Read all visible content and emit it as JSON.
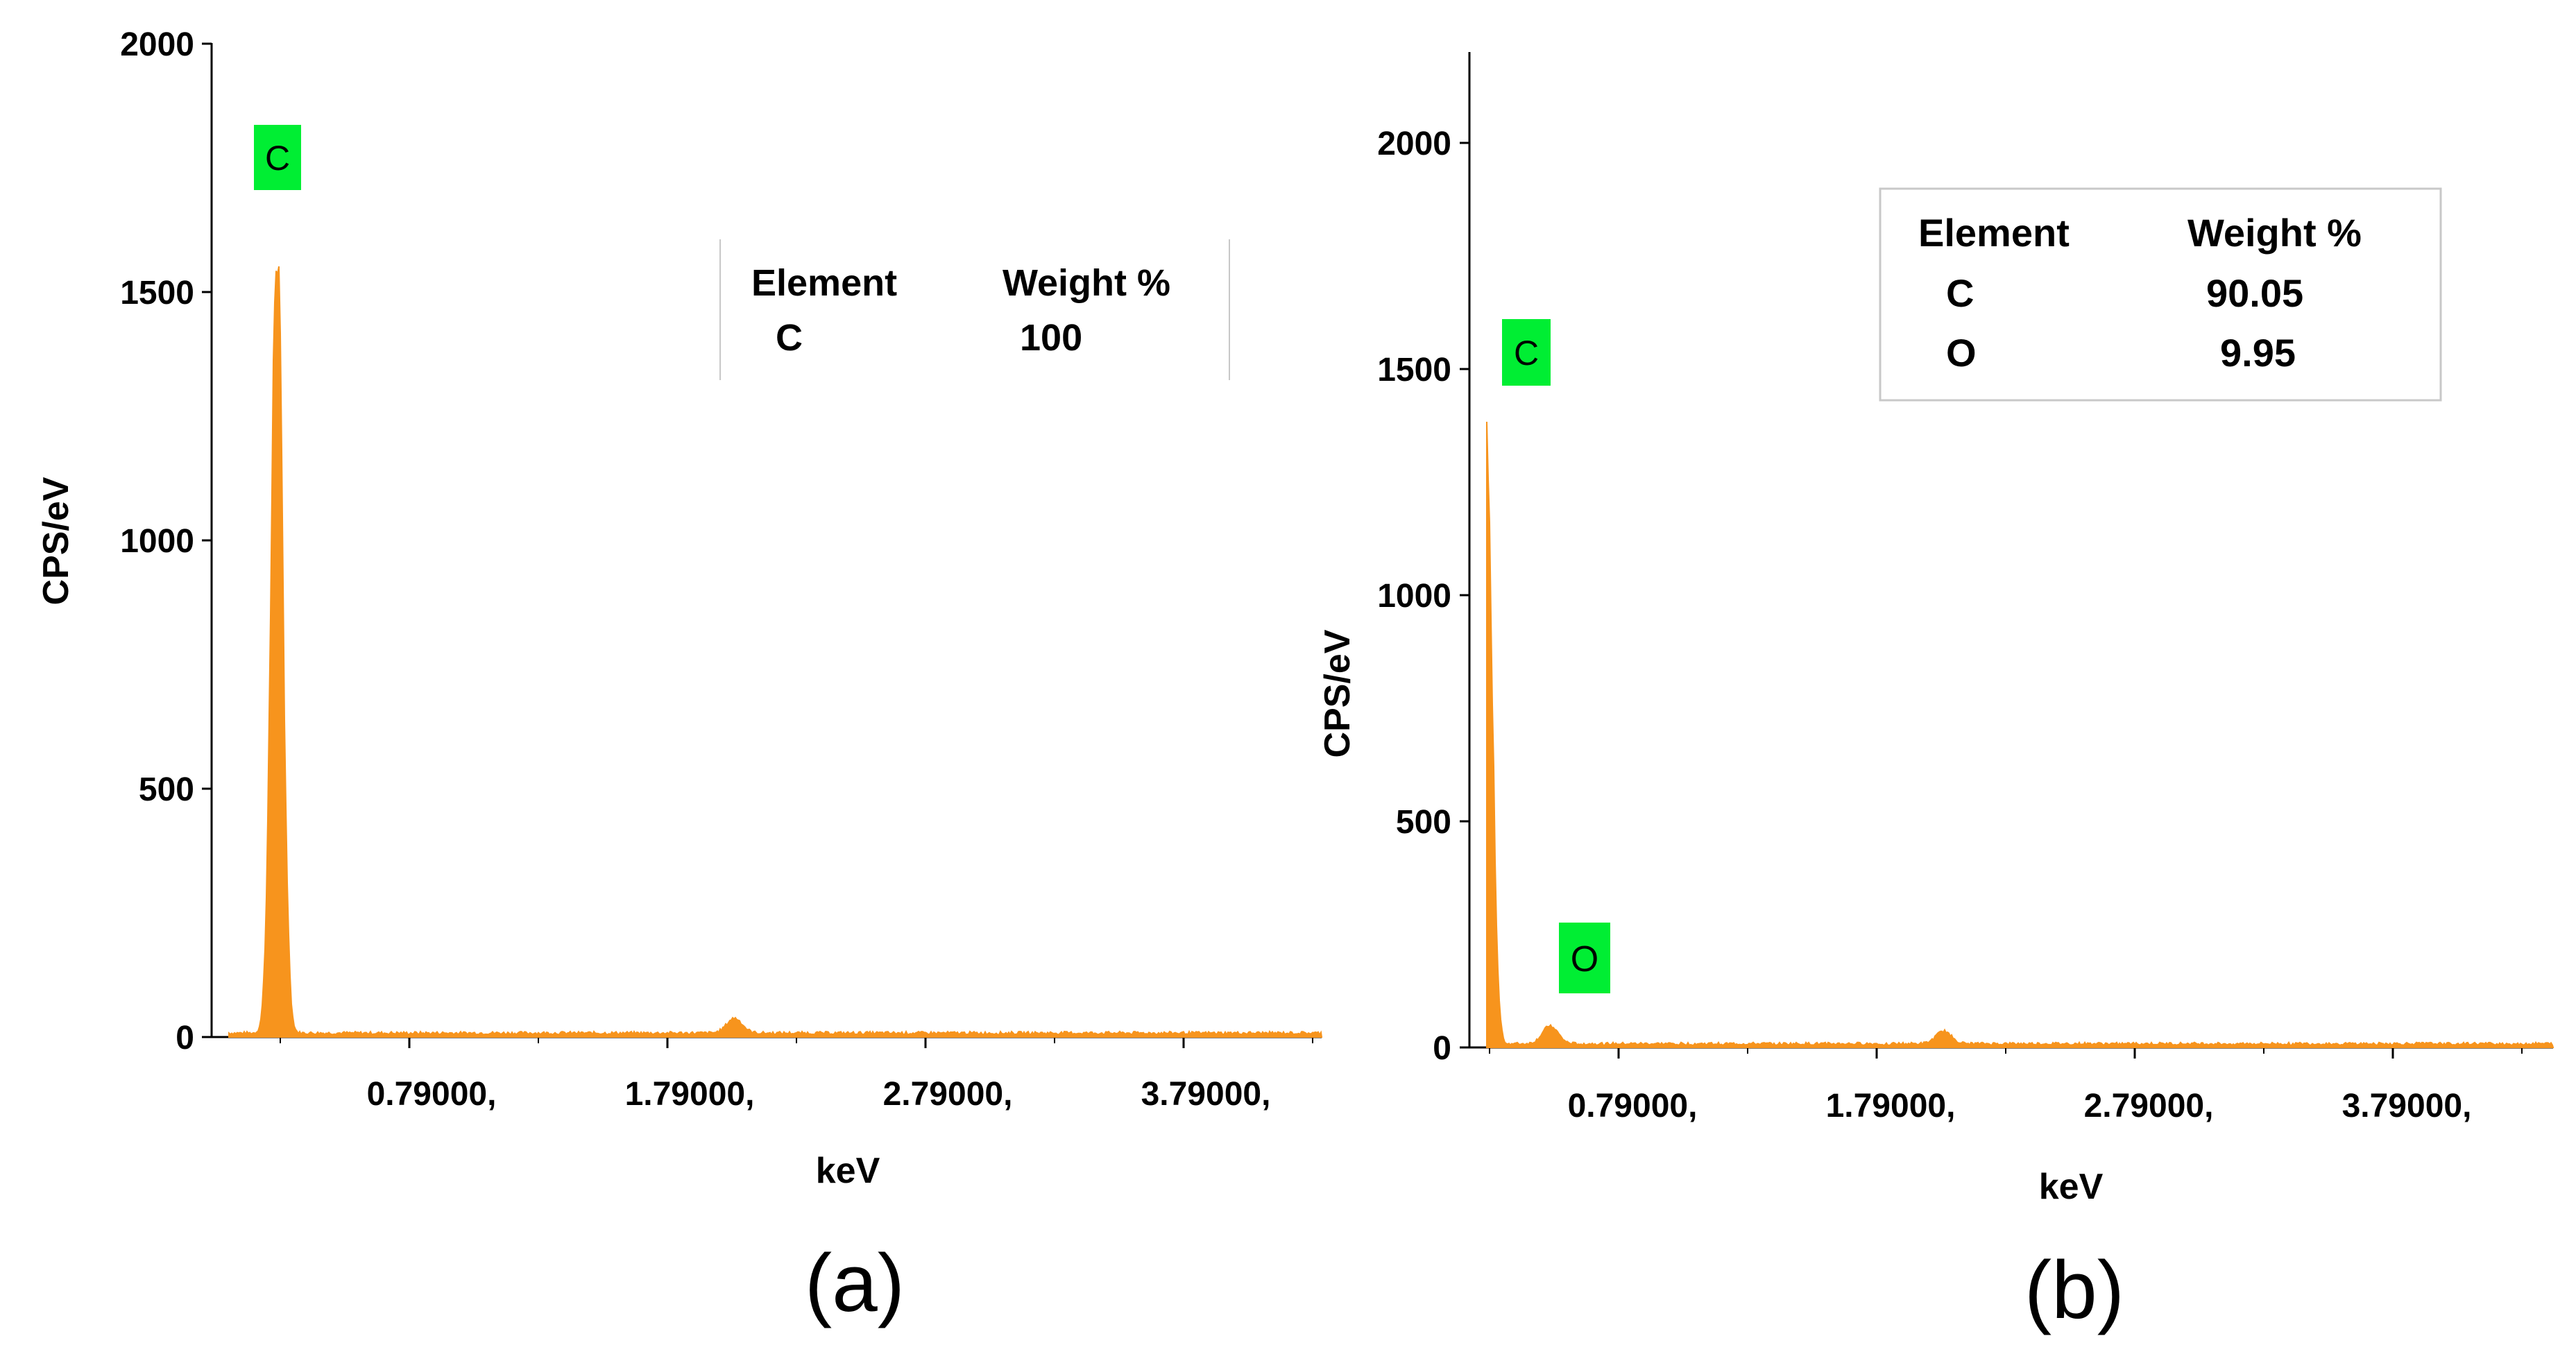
{
  "colors": {
    "spectrum": "#f7941d",
    "peak_label_bg": "#00ee33",
    "axis": "#000000",
    "table_border": "#c8c8c8"
  },
  "panels": [
    {
      "caption": "(a)",
      "xlabel": "keV",
      "ylabel": "CPS/eV",
      "y_ticks": [
        "0",
        "500",
        "1000",
        "1500",
        "2000"
      ],
      "x_ticks": [
        "0.79000,",
        "1.79000,",
        "2.79000,",
        "3.79000,"
      ],
      "peak_labels": [
        "C"
      ],
      "table": {
        "headers": [
          "Element",
          "Weight %"
        ],
        "rows": [
          [
            "C",
            "100"
          ]
        ]
      }
    },
    {
      "caption": "(b)",
      "xlabel": "keV",
      "ylabel": "CPS/eV",
      "y_ticks": [
        "0",
        "500",
        "1000",
        "1500",
        "2000"
      ],
      "x_ticks": [
        "0.79000,",
        "1.79000,",
        "2.79000,",
        "3.79000,"
      ],
      "peak_labels": [
        "C",
        "O"
      ],
      "table": {
        "headers": [
          "Element",
          "Weight %"
        ],
        "rows": [
          [
            "C",
            "90.05"
          ],
          [
            "O",
            "9.95"
          ]
        ]
      }
    }
  ],
  "chart_data": [
    {
      "type": "area",
      "xlabel": "keV",
      "ylabel": "CPS/eV",
      "xlim": [
        0,
        4.3
      ],
      "ylim": [
        0,
        2000
      ],
      "x_ticks": [
        0.79,
        1.79,
        2.79,
        3.79
      ],
      "y_ticks": [
        0,
        500,
        1000,
        1500,
        2000
      ],
      "peaks": [
        {
          "element": "C",
          "x": 0.277,
          "y": 1680
        },
        {
          "element": "O",
          "x": 2.05,
          "y": 30
        }
      ],
      "background": 8,
      "annotations": [
        "C"
      ]
    },
    {
      "type": "area",
      "xlabel": "keV",
      "ylabel": "CPS/eV",
      "xlim": [
        0,
        4.2
      ],
      "ylim": [
        0,
        2200
      ],
      "x_ticks": [
        0.79,
        1.79,
        2.79,
        3.79
      ],
      "y_ticks": [
        0,
        500,
        1000,
        1500,
        2000
      ],
      "peaks": [
        {
          "element": "C",
          "x": 0.277,
          "y": 1470
        },
        {
          "element": "O",
          "x": 0.525,
          "y": 40
        },
        {
          "element": "",
          "x": 2.05,
          "y": 28
        }
      ],
      "background": 8,
      "annotations": [
        "C",
        "O"
      ]
    }
  ]
}
